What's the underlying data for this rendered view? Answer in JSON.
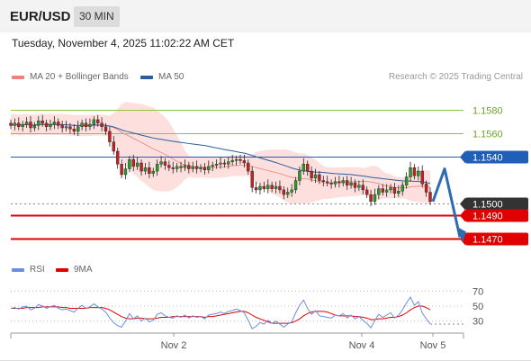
{
  "header": {
    "symbol": "EUR/USD",
    "timeframe": "30 MIN",
    "datetime": "Tuesday, November 4, 2025 11:02:22 AM CET"
  },
  "legend": {
    "bb_label": "MA 20 + Bollinger Bands",
    "ma50_label": "MA 50",
    "copyright": "Research © 2025 Trading Central"
  },
  "rsi_legend": {
    "rsi_label": "RSI",
    "ma_label": "9MA"
  },
  "colors": {
    "bb": "#f08080",
    "bb_fill": "#fde0de",
    "ma50": "#2b5d9c",
    "resistance": "#8ec63f",
    "pivot": "#1f5fb8",
    "support": "#e00000",
    "last": "#333333",
    "rsi": "#6b8fde",
    "rsi_ma": "#e00000",
    "arrow": "#2e6bb3"
  },
  "chart_data": {
    "type": "candlestick",
    "y_range": [
      1.1455,
      1.1595
    ],
    "x_labels": [
      "Nov 2",
      "Nov 4",
      "Nov 5"
    ],
    "levels": [
      {
        "value": 1.158,
        "label": "1.1580",
        "kind": "resistance"
      },
      {
        "value": 1.156,
        "label": "1.1560",
        "kind": "resistance"
      },
      {
        "value": 1.154,
        "label": "1.1540",
        "kind": "pivot"
      },
      {
        "value": 1.15,
        "label": "1.1500",
        "kind": "last"
      },
      {
        "value": 1.149,
        "label": "1.1490",
        "kind": "support"
      },
      {
        "value": 1.147,
        "label": "1.1470",
        "kind": "support"
      }
    ],
    "closes": [
      1.1567,
      1.1569,
      1.1566,
      1.1568,
      1.157,
      1.1565,
      1.1567,
      1.1571,
      1.1569,
      1.1566,
      1.1568,
      1.157,
      1.1567,
      1.1565,
      1.1566,
      1.1564,
      1.1562,
      1.1566,
      1.1569,
      1.1566,
      1.1568,
      1.1572,
      1.1569,
      1.1566,
      1.1562,
      1.1553,
      1.1545,
      1.1534,
      1.1525,
      1.153,
      1.1538,
      1.1532,
      1.1535,
      1.1528,
      1.1531,
      1.1526,
      1.1528,
      1.1534,
      1.1536,
      1.1533,
      1.1531,
      1.153,
      1.1532,
      1.1531,
      1.1533,
      1.153,
      1.1532,
      1.153,
      1.1531,
      1.1529,
      1.1532,
      1.1533,
      1.1534,
      1.1535,
      1.1534,
      1.1536,
      1.1537,
      1.1538,
      1.1537,
      1.1535,
      1.1528,
      1.1514,
      1.1512,
      1.1515,
      1.1513,
      1.1516,
      1.1513,
      1.1515,
      1.1512,
      1.1508,
      1.151,
      1.1512,
      1.152,
      1.1528,
      1.1534,
      1.1528,
      1.1522,
      1.1525,
      1.152,
      1.1519,
      1.1518,
      1.1517,
      1.1519,
      1.1518,
      1.152,
      1.1516,
      1.1518,
      1.1514,
      1.1516,
      1.1512,
      1.1508,
      1.1502,
      1.1508,
      1.1513,
      1.151,
      1.1512,
      1.1514,
      1.1509,
      1.1511,
      1.1516,
      1.1523,
      1.1531,
      1.1524,
      1.1528,
      1.1517,
      1.151,
      1.1502
    ],
    "rsi": {
      "y_range": [
        20,
        80
      ],
      "ticks": [
        70,
        50,
        30
      ],
      "values": [
        47,
        48,
        46,
        49,
        50,
        45,
        47,
        52,
        50,
        47,
        49,
        51,
        47,
        45,
        46,
        44,
        42,
        47,
        51,
        47,
        49,
        53,
        49,
        46,
        42,
        34,
        28,
        24,
        22,
        30,
        40,
        33,
        37,
        30,
        34,
        29,
        31,
        39,
        41,
        37,
        35,
        34,
        37,
        35,
        38,
        34,
        37,
        35,
        36,
        33,
        38,
        39,
        40,
        42,
        40,
        43,
        44,
        46,
        44,
        41,
        31,
        20,
        23,
        28,
        26,
        31,
        27,
        30,
        26,
        22,
        26,
        29,
        41,
        51,
        58,
        47,
        39,
        44,
        37,
        36,
        35,
        34,
        38,
        37,
        40,
        34,
        38,
        33,
        36,
        31,
        27,
        21,
        31,
        39,
        35,
        38,
        41,
        34,
        38,
        45,
        54,
        62,
        51,
        56,
        41,
        33,
        26
      ],
      "ma": [
        47,
        47,
        47,
        47,
        48,
        48,
        48,
        48,
        49,
        49,
        49,
        49,
        49,
        48,
        48,
        47,
        47,
        47,
        47,
        47,
        48,
        48,
        48,
        48,
        47,
        45,
        42,
        39,
        36,
        34,
        33,
        33,
        34,
        34,
        33,
        33,
        33,
        34,
        35,
        35,
        35,
        36,
        36,
        36,
        36,
        36,
        36,
        36,
        36,
        35,
        36,
        36,
        37,
        38,
        39,
        40,
        41,
        42,
        43,
        43,
        41,
        38,
        35,
        33,
        31,
        29,
        27,
        27,
        27,
        27,
        27,
        28,
        30,
        33,
        37,
        40,
        42,
        43,
        43,
        43,
        42,
        40,
        38,
        37,
        37,
        37,
        37,
        36,
        36,
        35,
        34,
        32,
        32,
        33,
        33,
        34,
        35,
        35,
        36,
        38,
        41,
        45,
        48,
        50,
        50,
        48,
        45
      ]
    },
    "arrow": {
      "from": 1.1502,
      "via": 1.153,
      "to": 1.147
    }
  }
}
